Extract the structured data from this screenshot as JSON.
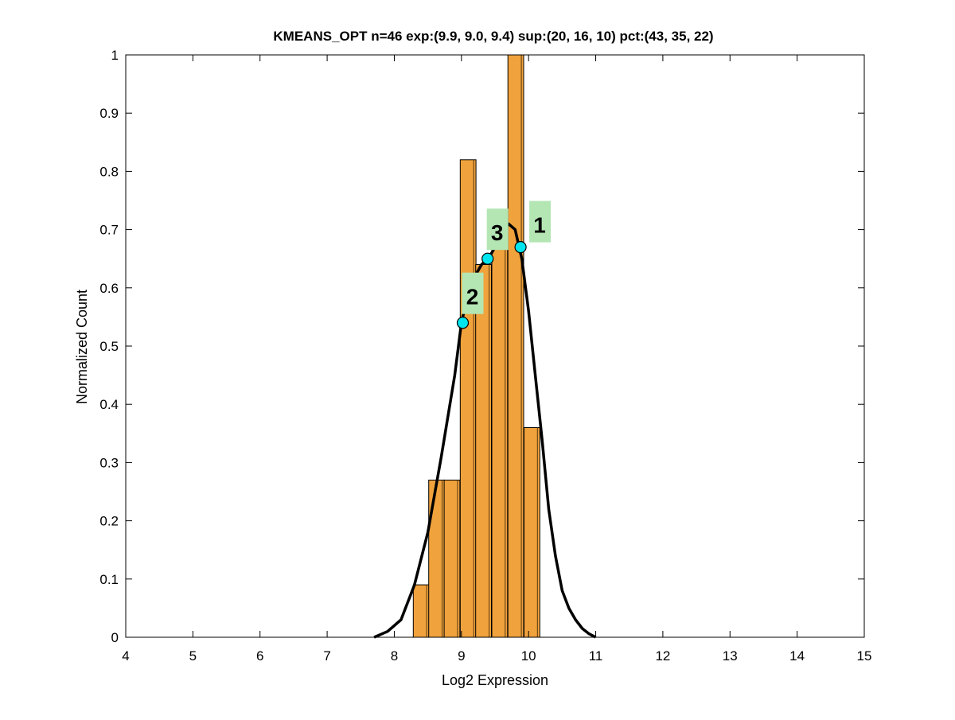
{
  "chart_data": {
    "type": "bar",
    "title": "KMEANS_OPT n=46 exp:(9.9, 9.0, 9.4) sup:(20, 16, 10) pct:(43, 35, 22)",
    "xlabel": "Log2 Expression",
    "ylabel": "Normalized Count",
    "xlim": [
      4,
      15
    ],
    "ylim": [
      0,
      1
    ],
    "x_ticks": [
      "4",
      "5",
      "6",
      "7",
      "8",
      "9",
      "10",
      "11",
      "12",
      "13",
      "14",
      "15"
    ],
    "y_ticks": [
      "0",
      "0.1",
      "0.2",
      "0.3",
      "0.4",
      "0.5",
      "0.6",
      "0.7",
      "0.8",
      "0.9",
      "1"
    ],
    "grid": false,
    "bars": [
      {
        "x": 8.4,
        "value": 0.09
      },
      {
        "x": 8.63,
        "value": 0.27
      },
      {
        "x": 8.86,
        "value": 0.27
      },
      {
        "x": 9.1,
        "value": 0.82
      },
      {
        "x": 9.33,
        "value": 0.64
      },
      {
        "x": 9.57,
        "value": 0.67
      },
      {
        "x": 9.81,
        "value": 1.0
      },
      {
        "x": 10.05,
        "value": 0.36
      }
    ],
    "bar_color": "#f0a23c",
    "curve": {
      "type": "line",
      "color": "#000000",
      "points": [
        [
          7.7,
          0.0
        ],
        [
          7.9,
          0.01
        ],
        [
          8.1,
          0.03
        ],
        [
          8.3,
          0.09
        ],
        [
          8.5,
          0.18
        ],
        [
          8.7,
          0.31
        ],
        [
          8.9,
          0.45
        ],
        [
          9.0,
          0.54
        ],
        [
          9.1,
          0.59
        ],
        [
          9.2,
          0.62
        ],
        [
          9.3,
          0.64
        ],
        [
          9.4,
          0.65
        ],
        [
          9.5,
          0.67
        ],
        [
          9.6,
          0.69
        ],
        [
          9.7,
          0.71
        ],
        [
          9.8,
          0.7
        ],
        [
          9.9,
          0.65
        ],
        [
          10.0,
          0.56
        ],
        [
          10.1,
          0.45
        ],
        [
          10.2,
          0.34
        ],
        [
          10.3,
          0.22
        ],
        [
          10.4,
          0.14
        ],
        [
          10.5,
          0.08
        ],
        [
          10.6,
          0.05
        ],
        [
          10.7,
          0.03
        ],
        [
          10.8,
          0.015
        ],
        [
          10.9,
          0.006
        ],
        [
          11.0,
          0.0
        ]
      ]
    },
    "markers": [
      {
        "label": "1",
        "x": 9.88,
        "y": 0.67
      },
      {
        "label": "2",
        "x": 9.02,
        "y": 0.54
      },
      {
        "label": "3",
        "x": 9.39,
        "y": 0.65
      }
    ],
    "marker_color": "#00e5ee",
    "label_bg_color": "#b4e6b4"
  }
}
